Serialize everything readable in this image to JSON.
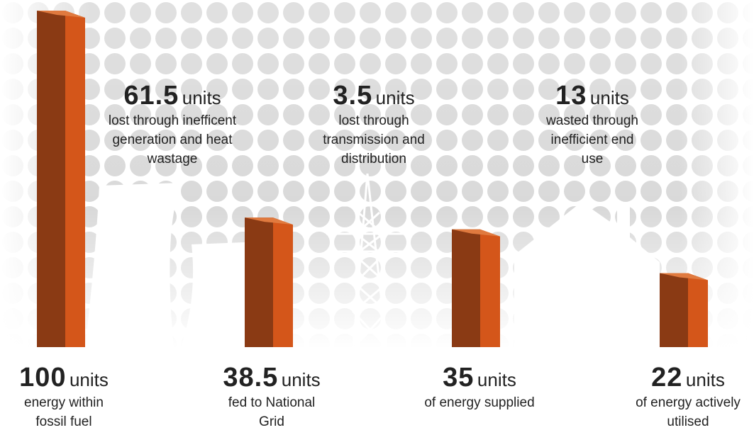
{
  "chart_data": {
    "type": "bar",
    "unit": "units",
    "categories": [
      "energy within fossil fuel",
      "fed to National Grid",
      "of energy supplied",
      "of energy actively utilised"
    ],
    "values": [
      100,
      38.5,
      35,
      22
    ],
    "color": "#d4561a",
    "losses": [
      {
        "value": 61.5,
        "label": "lost through inefficent generation and heat wastage"
      },
      {
        "value": 3.5,
        "label": "lost through transmission and distribution"
      },
      {
        "value": 13,
        "label": "wasted through inefficient end use"
      }
    ]
  }
}
